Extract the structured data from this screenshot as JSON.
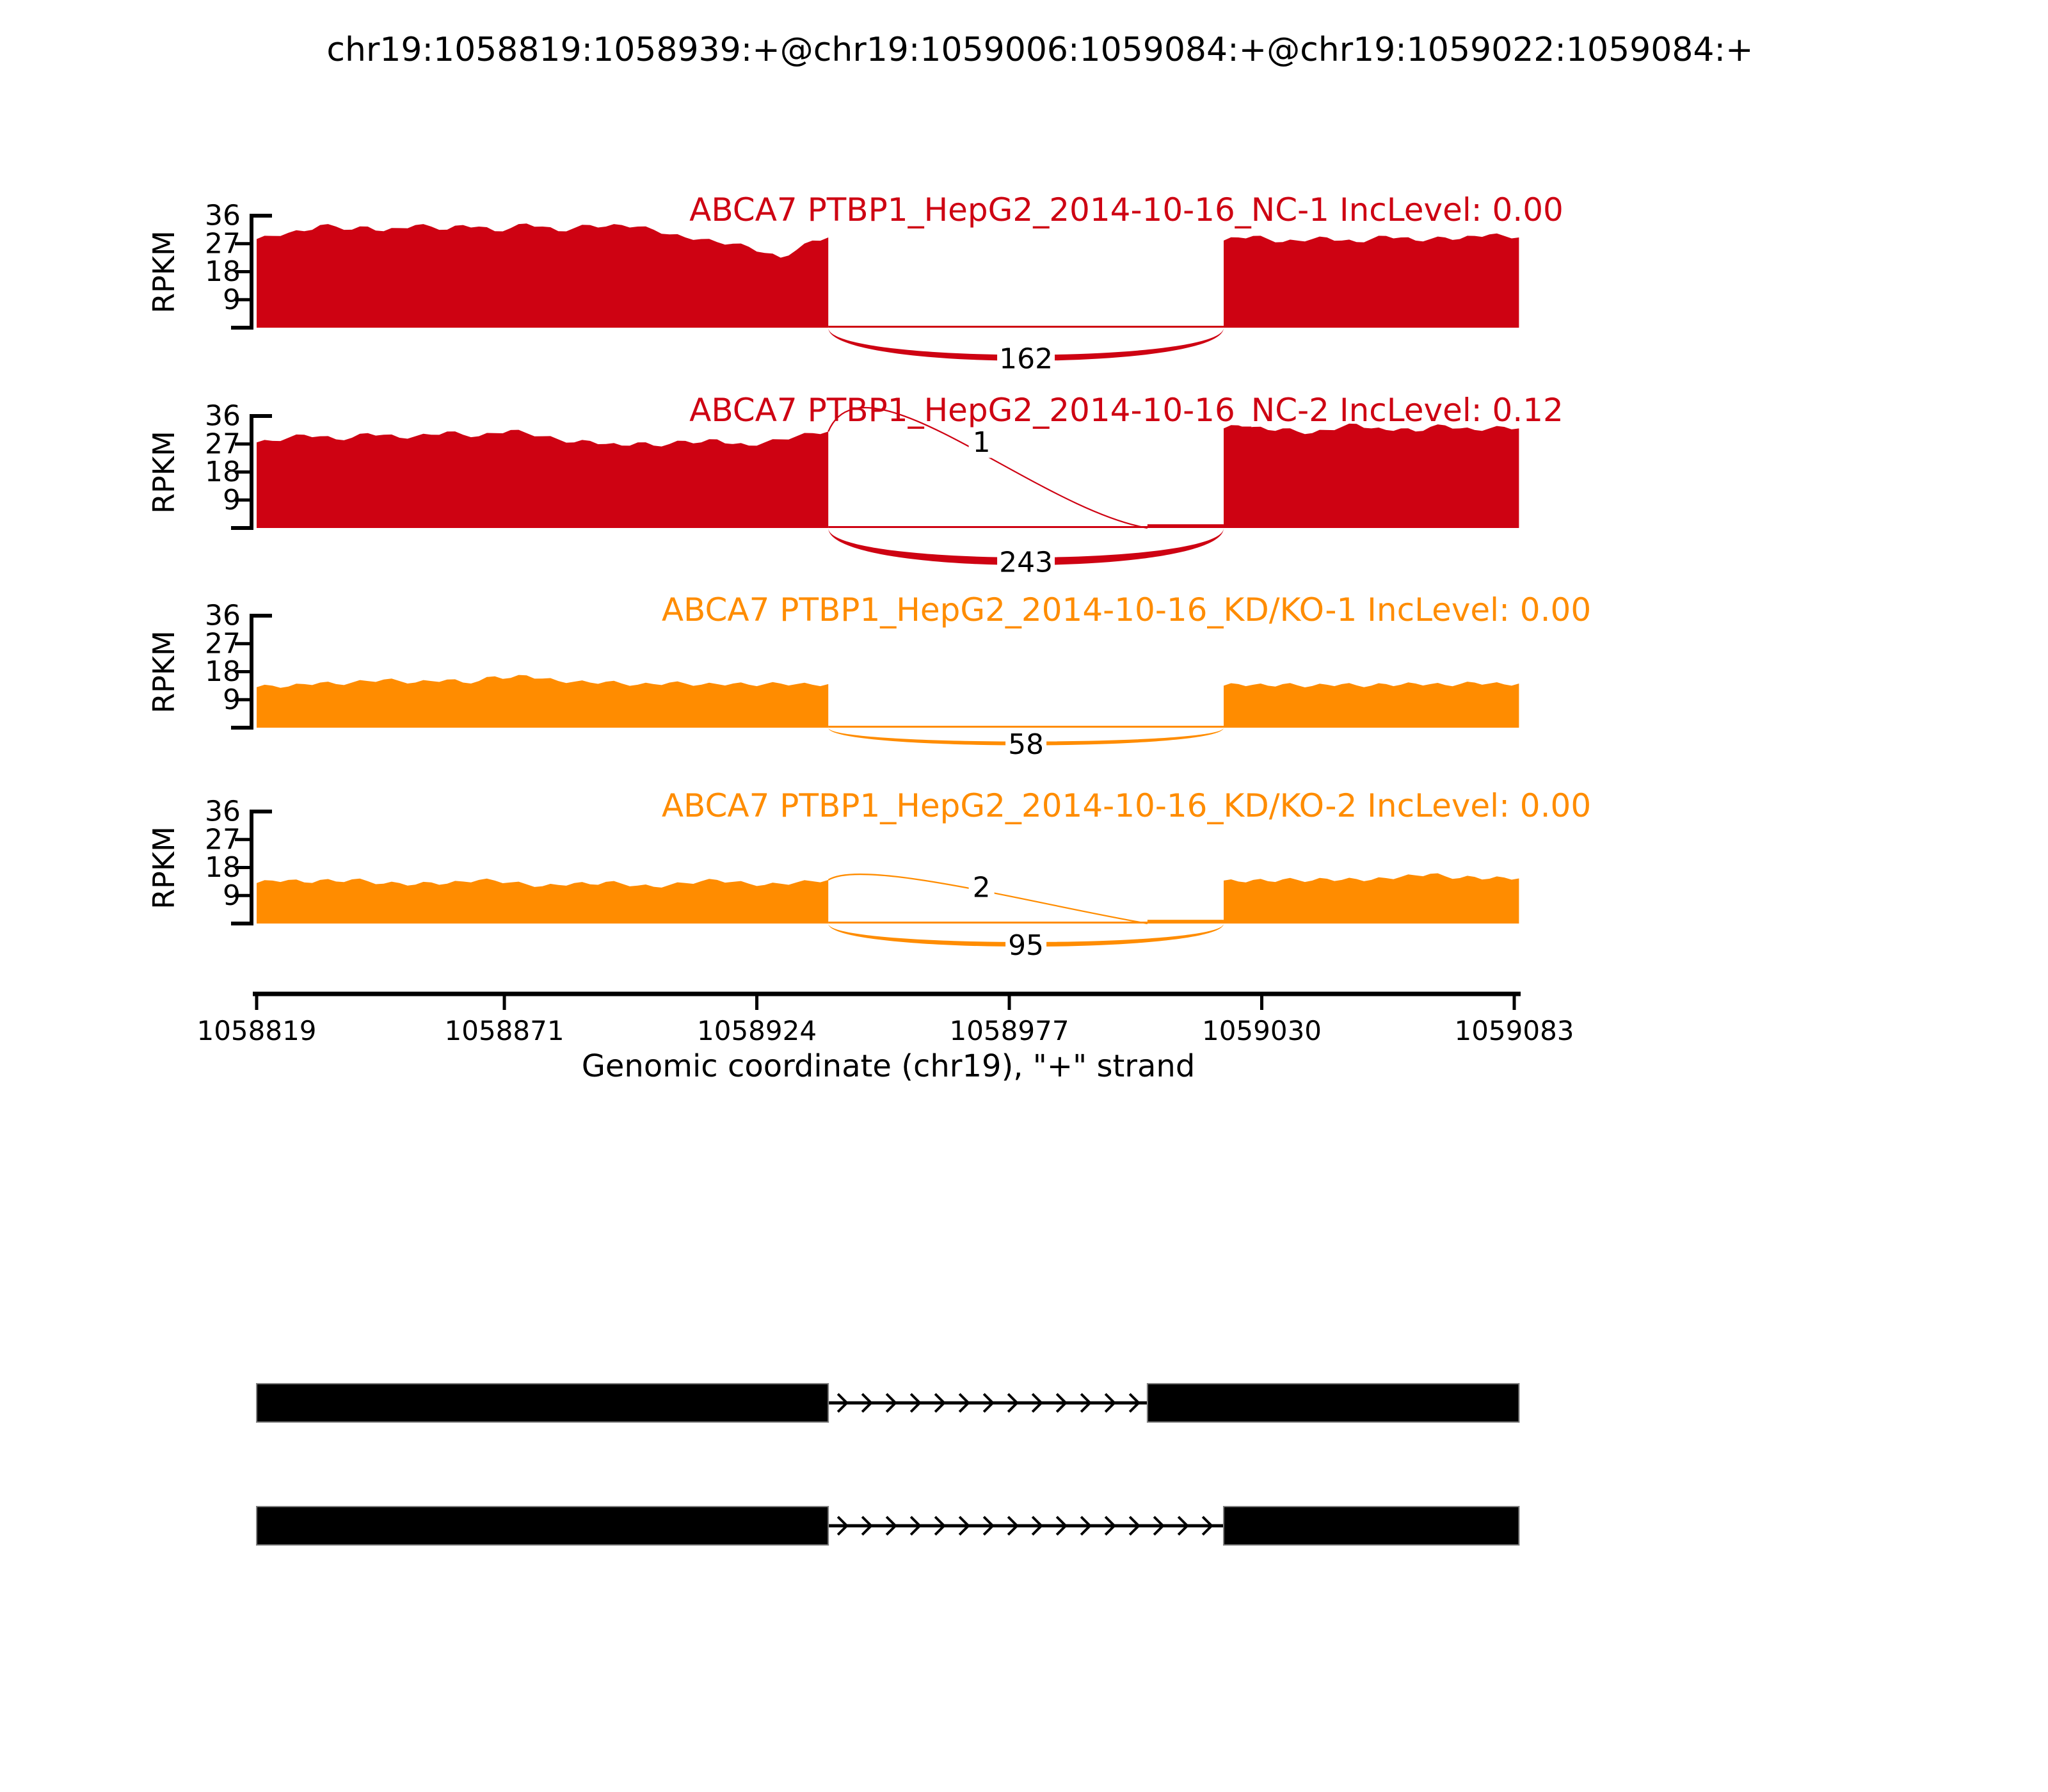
{
  "chart_data": {
    "type": "area",
    "title": "chr19:1058819:1058939:+@chr19:1059006:1059084:+@chr19:1059022:1059084:+",
    "xlabel": "Genomic coordinate (chr19), \"+\" strand",
    "ylabel": "RPKM",
    "x_ticks": [
      1058819,
      1058871,
      1058924,
      1058977,
      1059030,
      1059083
    ],
    "y_ticks": [
      9,
      18,
      27,
      36
    ],
    "x_range": [
      1058819,
      1059083
    ],
    "y_range": [
      0,
      36
    ],
    "event": {
      "chrom": "chr19",
      "strand": "+",
      "upstream_exon": [
        1058819,
        1058939
      ],
      "alt_acceptor_long": 1059006,
      "alt_acceptor_short": 1059022,
      "downstream_exon_end": 1059084
    },
    "tracks": [
      {
        "label": "ABCA7 PTBP1_HepG2_2014-10-16_NC-1 IncLevel: 0.00",
        "inc_level": "0.00",
        "color": "#CE0212",
        "exon1_coverage_rpkm": [
          28.5,
          29.5,
          30.5,
          31,
          33,
          32.5,
          31.5,
          32.5,
          31,
          32,
          33,
          32.5,
          31.5,
          33,
          32.5,
          31,
          32,
          33.5,
          32.5,
          31,
          32,
          33,
          32.5,
          33,
          32.5,
          31.5,
          30,
          29,
          28.5,
          27.5,
          27,
          26,
          24,
          22.5,
          25,
          28,
          29
        ],
        "exon2_start": 1059022,
        "exon2_coverage_rpkm": [
          28,
          29,
          29.5,
          28.5,
          27.5,
          28,
          28.5,
          29,
          28,
          27.5,
          28.5,
          29.5,
          29,
          28,
          28.5,
          29,
          28.5,
          29.5,
          30,
          29.5,
          29
        ],
        "inclusion_segment_rpkm": 0,
        "junctions": [
          {
            "from": 1058939,
            "to": 1059022,
            "reads": 162,
            "arc": "below"
          }
        ]
      },
      {
        "label": "ABCA7 PTBP1_HepG2_2014-10-16_NC-2 IncLevel: 0.12",
        "inc_level": "0.12",
        "color": "#CE0212",
        "exon1_coverage_rpkm": [
          27.5,
          28,
          29,
          30,
          29.5,
          28.5,
          29,
          30.5,
          30,
          29,
          29.5,
          30,
          31,
          30,
          29.5,
          30.5,
          31.5,
          30.5,
          29.5,
          28.5,
          27.5,
          28,
          27,
          26.5,
          27.5,
          26.5,
          27,
          28,
          27.5,
          28.5,
          27,
          26.5,
          27.5,
          28.5,
          29.5,
          30.5,
          31
        ],
        "exon2_start": 1059022,
        "exon2_coverage_rpkm": [
          32,
          33,
          32.5,
          31.5,
          32,
          31,
          30.5,
          31.5,
          32.5,
          33.5,
          32,
          31.5,
          32,
          31,
          32.5,
          33,
          32,
          31.5,
          32,
          32.5,
          32
        ],
        "inclusion_segment_rpkm": 1.2,
        "junctions": [
          {
            "from": 1058939,
            "to": 1059006,
            "reads": 1,
            "arc": "above"
          },
          {
            "from": 1058939,
            "to": 1059022,
            "reads": 243,
            "arc": "below"
          }
        ]
      },
      {
        "label": "ABCA7 PTBP1_HepG2_2014-10-16_KD/KO-1 IncLevel: 0.00",
        "inc_level": "0.00",
        "color": "#FF8C00",
        "exon1_coverage_rpkm": [
          13,
          13.5,
          13.2,
          14,
          14.5,
          14,
          14.5,
          15,
          15.5,
          15,
          14.5,
          15,
          15.5,
          14.5,
          15,
          16.5,
          16,
          16.8,
          15.8,
          15,
          14.8,
          14.5,
          14.8,
          14.2,
          13.8,
          14,
          14.5,
          14.2,
          13.8,
          14,
          14.2,
          13.8,
          14,
          14.2,
          14,
          13.8,
          14
        ],
        "exon2_start": 1059022,
        "exon2_coverage_rpkm": [
          13.5,
          14,
          13.8,
          13.5,
          14,
          13.6,
          13.4,
          13.8,
          14,
          13.6,
          13.5,
          14,
          13.8,
          14.2,
          14,
          13.7,
          14,
          14.5,
          14.2,
          13.9,
          14.2
        ],
        "inclusion_segment_rpkm": 0,
        "junctions": [
          {
            "from": 1058939,
            "to": 1059022,
            "reads": 58,
            "arc": "below"
          }
        ]
      },
      {
        "label": "ABCA7 PTBP1_HepG2_2014-10-16_KD/KO-2 IncLevel: 0.00",
        "inc_level": "0.00",
        "color": "#FF8C00",
        "exon1_coverage_rpkm": [
          13,
          13.8,
          14,
          13.2,
          14,
          13.5,
          14.2,
          13.6,
          12.8,
          13,
          12.5,
          13.2,
          12.8,
          13.5,
          14,
          13.8,
          13.2,
          12.6,
          12,
          12.4,
          13,
          12.6,
          13.4,
          12.8,
          12.2,
          11.8,
          12.4,
          13,
          13.6,
          14,
          13.4,
          12.8,
          12.4,
          12.8,
          13.2,
          13.6,
          14
        ],
        "exon2_start": 1059022,
        "exon2_coverage_rpkm": [
          13.8,
          13.5,
          14,
          13.6,
          14.2,
          14,
          13.8,
          14.4,
          14,
          14.3,
          14,
          14.6,
          15,
          15.5,
          16,
          15.2,
          14.6,
          15,
          14.4,
          14.8,
          14.5
        ],
        "inclusion_segment_rpkm": 1.2,
        "junctions": [
          {
            "from": 1058939,
            "to": 1059006,
            "reads": 2,
            "arc": "above"
          },
          {
            "from": 1058939,
            "to": 1059022,
            "reads": 95,
            "arc": "below"
          }
        ]
      }
    ],
    "isoforms": [
      {
        "exons": [
          [
            1058819,
            1058939
          ],
          [
            1059006,
            1059084
          ]
        ]
      },
      {
        "exons": [
          [
            1058819,
            1058939
          ],
          [
            1059022,
            1059084
          ]
        ]
      }
    ]
  }
}
